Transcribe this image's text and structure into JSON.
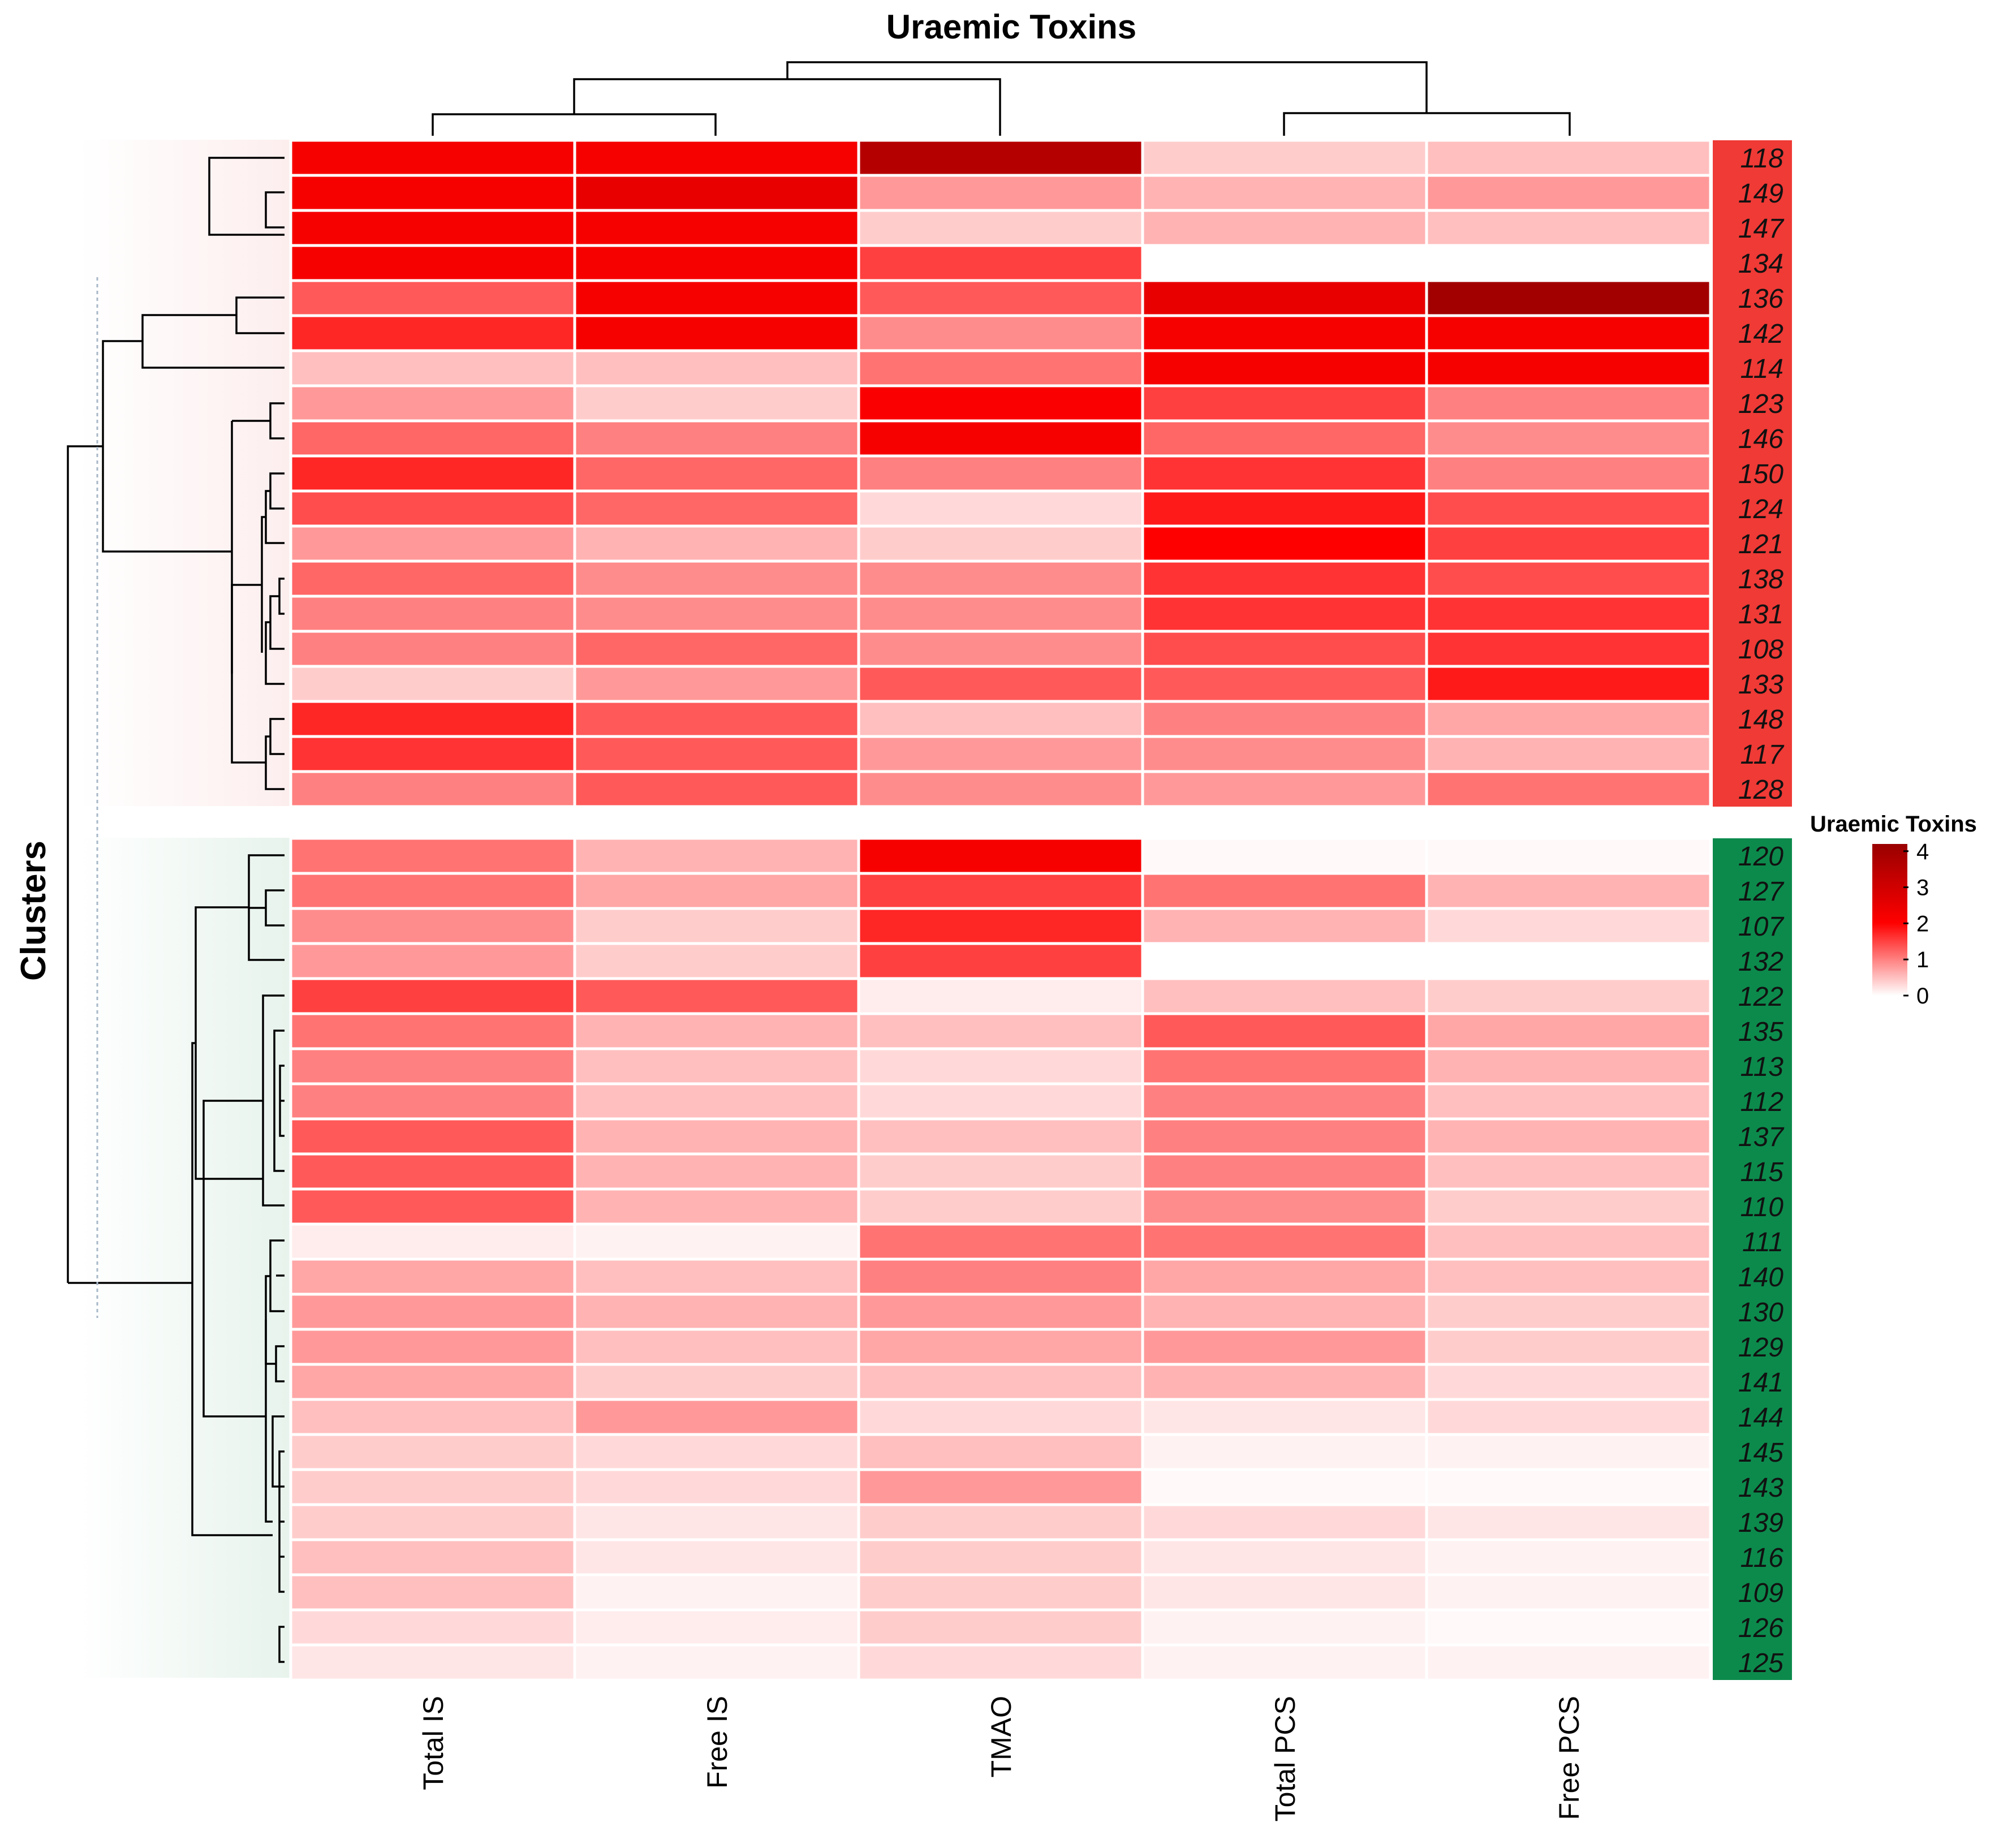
{
  "chart_data": {
    "type": "heatmap",
    "title": "Uraemic Toxins",
    "ylabel": "Clusters",
    "columns": [
      "Total IS",
      "Free IS",
      "TMAO",
      "Total PCS",
      "Free PCS"
    ],
    "legend": {
      "title": "Uraemic Toxins",
      "placement": "right",
      "ticks": [
        "4",
        "3",
        "2",
        "1",
        "0"
      ],
      "range": [
        0,
        4.2
      ],
      "color_low": "#ffffff",
      "color_mid": "#ff0000",
      "color_high": "#990000"
    },
    "cluster_colors": {
      "red": "#ef3a36",
      "green": "#0c8a4c"
    },
    "clusters": [
      {
        "name": "red",
        "rows": [
          {
            "id": "118",
            "values": [
              2.2,
              2.2,
              3.6,
              0.4,
              0.5
            ]
          },
          {
            "id": "149",
            "values": [
              2.2,
              2.5,
              0.8,
              0.6,
              0.8
            ]
          },
          {
            "id": "147",
            "values": [
              2.2,
              2.2,
              0.4,
              0.6,
              0.5
            ]
          },
          {
            "id": "134",
            "values": [
              2.2,
              2.2,
              1.5,
              0.0,
              0.0
            ]
          },
          {
            "id": "136",
            "values": [
              1.3,
              2.2,
              1.3,
              2.5,
              4.0
            ]
          },
          {
            "id": "142",
            "values": [
              1.7,
              2.2,
              0.9,
              2.2,
              2.2
            ]
          },
          {
            "id": "114",
            "values": [
              0.5,
              0.5,
              1.1,
              2.2,
              2.2
            ]
          },
          {
            "id": "123",
            "values": [
              0.8,
              0.4,
              2.1,
              1.5,
              1.0
            ]
          },
          {
            "id": "146",
            "values": [
              1.2,
              1.0,
              2.2,
              1.2,
              0.9
            ]
          },
          {
            "id": "150",
            "values": [
              1.7,
              1.2,
              1.0,
              1.6,
              1.0
            ]
          },
          {
            "id": "124",
            "values": [
              1.4,
              1.2,
              0.3,
              1.8,
              1.4
            ]
          },
          {
            "id": "121",
            "values": [
              0.8,
              0.6,
              0.4,
              2.0,
              1.5
            ]
          },
          {
            "id": "138",
            "values": [
              1.2,
              0.9,
              0.9,
              1.6,
              1.4
            ]
          },
          {
            "id": "131",
            "values": [
              1.0,
              0.9,
              0.9,
              1.6,
              1.6
            ]
          },
          {
            "id": "108",
            "values": [
              1.0,
              1.2,
              0.9,
              1.4,
              1.6
            ]
          },
          {
            "id": "133",
            "values": [
              0.4,
              0.8,
              1.3,
              1.3,
              1.8
            ]
          },
          {
            "id": "148",
            "values": [
              1.7,
              1.3,
              0.5,
              1.0,
              0.7
            ]
          },
          {
            "id": "117",
            "values": [
              1.6,
              1.3,
              0.8,
              0.9,
              0.6
            ]
          },
          {
            "id": "128",
            "values": [
              1.0,
              1.3,
              0.9,
              0.8,
              1.1
            ]
          }
        ]
      },
      {
        "name": "green",
        "rows": [
          {
            "id": "120",
            "values": [
              1.1,
              0.6,
              2.2,
              0.05,
              0.05
            ]
          },
          {
            "id": "127",
            "values": [
              1.1,
              0.7,
              1.5,
              1.1,
              0.6
            ]
          },
          {
            "id": "107",
            "values": [
              0.9,
              0.4,
              1.7,
              0.6,
              0.3
            ]
          },
          {
            "id": "132",
            "values": [
              0.8,
              0.4,
              1.5,
              0.0,
              0.0
            ]
          },
          {
            "id": "122",
            "values": [
              1.5,
              1.3,
              0.15,
              0.5,
              0.4
            ]
          },
          {
            "id": "135",
            "values": [
              1.1,
              0.6,
              0.5,
              1.3,
              0.7
            ]
          },
          {
            "id": "113",
            "values": [
              1.0,
              0.5,
              0.3,
              1.1,
              0.6
            ]
          },
          {
            "id": "112",
            "values": [
              1.0,
              0.5,
              0.3,
              1.0,
              0.5
            ]
          },
          {
            "id": "137",
            "values": [
              1.3,
              0.6,
              0.5,
              1.0,
              0.6
            ]
          },
          {
            "id": "115",
            "values": [
              1.3,
              0.6,
              0.4,
              1.0,
              0.5
            ]
          },
          {
            "id": "110",
            "values": [
              1.3,
              0.6,
              0.4,
              0.9,
              0.4
            ]
          },
          {
            "id": "111",
            "values": [
              0.15,
              0.1,
              1.1,
              1.1,
              0.5
            ]
          },
          {
            "id": "140",
            "values": [
              0.7,
              0.5,
              1.0,
              0.7,
              0.5
            ]
          },
          {
            "id": "130",
            "values": [
              0.8,
              0.6,
              0.8,
              0.6,
              0.4
            ]
          },
          {
            "id": "129",
            "values": [
              0.8,
              0.5,
              0.7,
              0.8,
              0.4
            ]
          },
          {
            "id": "141",
            "values": [
              0.7,
              0.4,
              0.5,
              0.6,
              0.3
            ]
          },
          {
            "id": "144",
            "values": [
              0.5,
              0.8,
              0.3,
              0.2,
              0.3
            ]
          },
          {
            "id": "145",
            "values": [
              0.4,
              0.3,
              0.5,
              0.1,
              0.1
            ]
          },
          {
            "id": "143",
            "values": [
              0.4,
              0.3,
              0.8,
              0.05,
              0.05
            ]
          },
          {
            "id": "139",
            "values": [
              0.4,
              0.2,
              0.4,
              0.3,
              0.2
            ]
          },
          {
            "id": "116",
            "values": [
              0.5,
              0.2,
              0.4,
              0.2,
              0.1
            ]
          },
          {
            "id": "109",
            "values": [
              0.5,
              0.1,
              0.4,
              0.2,
              0.1
            ]
          },
          {
            "id": "126",
            "values": [
              0.3,
              0.15,
              0.4,
              0.1,
              0.05
            ]
          },
          {
            "id": "125",
            "values": [
              0.2,
              0.1,
              0.3,
              0.1,
              0.1
            ]
          }
        ]
      }
    ]
  }
}
